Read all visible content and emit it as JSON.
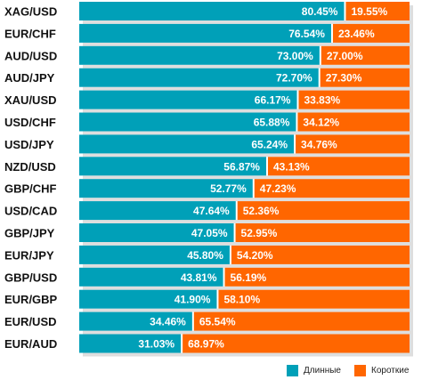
{
  "chart_data": {
    "type": "bar",
    "orientation": "horizontal",
    "stacked": true,
    "categories": [
      "XAG/USD",
      "EUR/CHF",
      "AUD/USD",
      "AUD/JPY",
      "XAU/USD",
      "USD/CHF",
      "USD/JPY",
      "NZD/USD",
      "GBP/CHF",
      "USD/CAD",
      "GBP/JPY",
      "EUR/JPY",
      "GBP/USD",
      "EUR/GBP",
      "EUR/USD",
      "EUR/AUD"
    ],
    "series": [
      {
        "name": "Длинные",
        "color": "#00a0b8",
        "values": [
          80.45,
          76.54,
          73.0,
          72.7,
          66.17,
          65.88,
          65.24,
          56.87,
          52.77,
          47.64,
          47.05,
          45.8,
          43.81,
          41.9,
          34.46,
          31.03
        ]
      },
      {
        "name": "Короткие",
        "color": "#ff6600",
        "values": [
          19.55,
          23.46,
          27.0,
          27.3,
          33.83,
          34.12,
          34.76,
          43.13,
          47.23,
          52.36,
          52.95,
          54.2,
          56.19,
          58.1,
          65.54,
          68.97
        ]
      }
    ],
    "value_labels": {
      "long": [
        "80.45%",
        "76.54%",
        "73.00%",
        "72.70%",
        "66.17%",
        "65.88%",
        "65.24%",
        "56.87%",
        "52.77%",
        "47.64%",
        "47.05%",
        "45.80%",
        "43.81%",
        "41.90%",
        "34.46%",
        "31.03%"
      ],
      "short": [
        "19.55%",
        "23.46%",
        "27.00%",
        "27.30%",
        "33.83%",
        "34.12%",
        "34.76%",
        "43.13%",
        "47.23%",
        "52.36%",
        "52.95%",
        "54.20%",
        "56.19%",
        "58.10%",
        "65.54%",
        "68.97%"
      ]
    },
    "xlim": [
      0,
      100
    ],
    "legend_position": "bottom-right"
  }
}
